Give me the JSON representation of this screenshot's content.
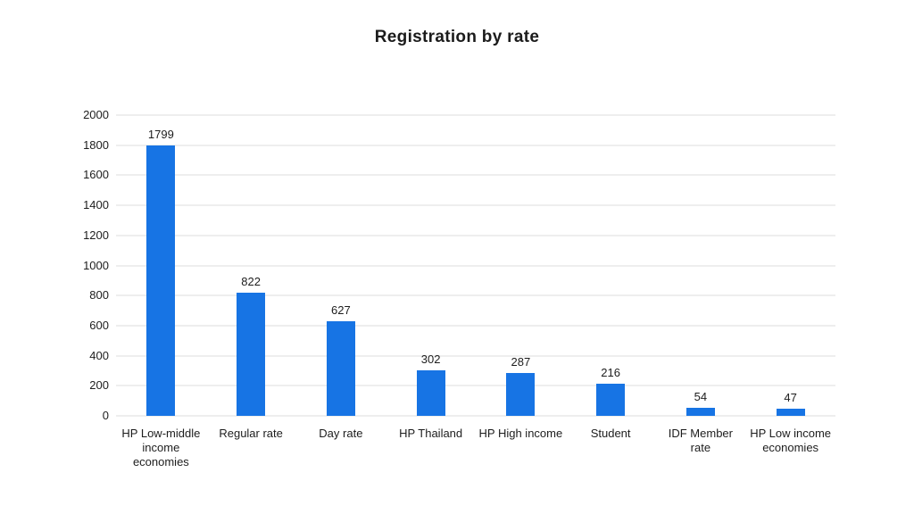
{
  "page": {
    "background": "#ffffff"
  },
  "chart_data": {
    "type": "bar",
    "title": "Registration by rate",
    "categories": [
      "HP Low-middle income economies",
      "Regular rate",
      "Day rate",
      "HP Thailand",
      "HP High income",
      "Student",
      "IDF Member rate",
      "HP Low income economies"
    ],
    "values": [
      1799,
      822,
      627,
      302,
      287,
      216,
      54,
      47
    ],
    "value_labels": [
      "1799",
      "822",
      "627",
      "302",
      "287",
      "216",
      "54",
      "47"
    ],
    "xlabel": "",
    "ylabel": "",
    "ylim": [
      0,
      2000
    ],
    "yticks": [
      0,
      200,
      400,
      600,
      800,
      1000,
      1200,
      1400,
      1600,
      1800,
      2000
    ],
    "grid": true,
    "legend": false,
    "bar_color": "#1774e4",
    "text_color": "#1d1d1d",
    "gridline_color": "#eeeeee"
  }
}
